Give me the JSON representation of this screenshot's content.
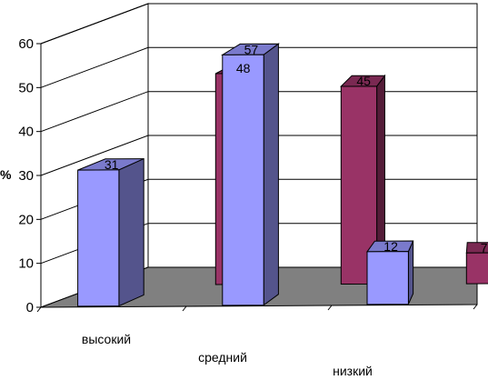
{
  "chart_data": {
    "type": "bar",
    "view": "3d-clustered-column",
    "ylabel": "%",
    "xlabel": "",
    "title": "",
    "ylim": [
      0,
      60
    ],
    "yticks": [
      "0",
      "10",
      "20",
      "30",
      "40",
      "50",
      "60"
    ],
    "categories": [
      "высокий",
      "средний",
      "низкий"
    ],
    "series": [
      {
        "color": "#9999ff",
        "values": [
          31,
          57,
          12
        ]
      },
      {
        "color": "#993366",
        "values": [
          48,
          45,
          7
        ]
      }
    ],
    "grid": true,
    "legend": "none",
    "wall_color": "#ffffff",
    "floor_color": "#808080"
  }
}
